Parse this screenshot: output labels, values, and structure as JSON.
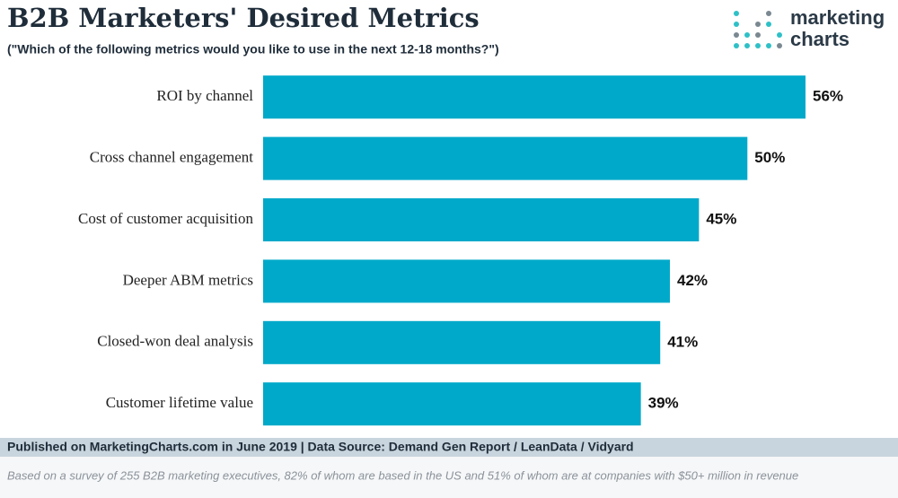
{
  "chart_data": {
    "type": "bar",
    "orientation": "horizontal",
    "title": "B2B Marketers' Desired Metrics",
    "subtitle": "(\"Which of the following metrics would you like to use in the next 12-18 months?\")",
    "categories": [
      "ROI by channel",
      "Cross channel engagement",
      "Cost of customer acquisition",
      "Deeper ABM metrics",
      "Closed-won deal analysis",
      "Customer lifetime value"
    ],
    "values": [
      56,
      50,
      45,
      42,
      41,
      39
    ],
    "value_labels": [
      "56%",
      "50%",
      "45%",
      "42%",
      "41%",
      "39%"
    ],
    "color": "#00a9c9",
    "logo": [
      "marketing",
      "charts"
    ],
    "source": "Published on MarketingCharts.com in June 2019 | Data Source: Demand Gen Report / LeanData / Vidyard",
    "note": "Based on a survey of 255 B2B marketing executives, 82% of whom are based in the US and 51% of whom are at companies with $50+ million in revenue"
  }
}
